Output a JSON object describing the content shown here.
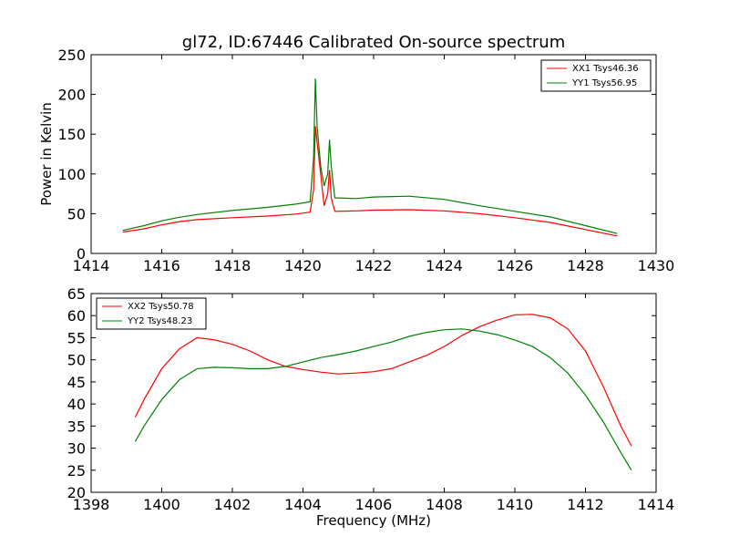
{
  "figure": {
    "title": "gl72, ID:67446 Calibrated On-source spectrum",
    "xlabel": "Frequency (MHz)"
  },
  "chart_data": [
    {
      "type": "line",
      "ylabel": "Power in Kelvin",
      "xlim": [
        1414,
        1430
      ],
      "ylim": [
        0,
        250
      ],
      "xticks": [
        "1414",
        "1416",
        "1418",
        "1420",
        "1422",
        "1424",
        "1426",
        "1428",
        "1430"
      ],
      "yticks": [
        "0",
        "50",
        "100",
        "150",
        "200",
        "250"
      ],
      "legend_position": "top-right",
      "series": [
        {
          "name": "XX1 Tsys46.36",
          "color": "#ff0000",
          "points": [
            [
              1414.9,
              27
            ],
            [
              1415.5,
              31
            ],
            [
              1416,
              36
            ],
            [
              1416.5,
              40
            ],
            [
              1417,
              42.5
            ],
            [
              1418,
              45
            ],
            [
              1419,
              47
            ],
            [
              1419.8,
              49.5
            ],
            [
              1420.2,
              52
            ],
            [
              1420.3,
              80
            ],
            [
              1420.35,
              160
            ],
            [
              1420.4,
              140
            ],
            [
              1420.5,
              100
            ],
            [
              1420.6,
              60
            ],
            [
              1420.7,
              75
            ],
            [
              1420.75,
              105
            ],
            [
              1420.8,
              70
            ],
            [
              1420.9,
              53
            ],
            [
              1421.5,
              53.5
            ],
            [
              1422,
              54.5
            ],
            [
              1423,
              55
            ],
            [
              1424,
              53.5
            ],
            [
              1425,
              50
            ],
            [
              1426,
              45
            ],
            [
              1427,
              39
            ],
            [
              1428,
              30
            ],
            [
              1428.9,
              22
            ]
          ]
        },
        {
          "name": "YY1 Tsys56.95",
          "color": "#008000",
          "points": [
            [
              1414.9,
              29
            ],
            [
              1415.5,
              35
            ],
            [
              1416,
              41
            ],
            [
              1416.5,
              45.5
            ],
            [
              1417,
              49
            ],
            [
              1418,
              54
            ],
            [
              1419,
              58
            ],
            [
              1419.8,
              62
            ],
            [
              1420.2,
              65
            ],
            [
              1420.3,
              120
            ],
            [
              1420.35,
              220
            ],
            [
              1420.4,
              160
            ],
            [
              1420.5,
              110
            ],
            [
              1420.6,
              85
            ],
            [
              1420.7,
              100
            ],
            [
              1420.75,
              143
            ],
            [
              1420.8,
              110
            ],
            [
              1420.9,
              70
            ],
            [
              1421.5,
              69
            ],
            [
              1422,
              71
            ],
            [
              1423,
              72
            ],
            [
              1424,
              68
            ],
            [
              1425,
              60
            ],
            [
              1426,
              53
            ],
            [
              1427,
              46
            ],
            [
              1428,
              35
            ],
            [
              1428.9,
              25
            ]
          ]
        }
      ]
    },
    {
      "type": "line",
      "ylabel": "",
      "xlim": [
        1398,
        1414
      ],
      "ylim": [
        20,
        65
      ],
      "xticks": [
        "1398",
        "1400",
        "1402",
        "1404",
        "1406",
        "1408",
        "1410",
        "1412",
        "1414"
      ],
      "yticks": [
        "20",
        "25",
        "30",
        "35",
        "40",
        "45",
        "50",
        "55",
        "60",
        "65"
      ],
      "legend_position": "top-left",
      "series": [
        {
          "name": "XX2 Tsys50.78",
          "color": "#ff0000",
          "points": [
            [
              1399.25,
              37
            ],
            [
              1399.5,
              41
            ],
            [
              1400,
              48
            ],
            [
              1400.5,
              52.5
            ],
            [
              1401,
              55
            ],
            [
              1401.5,
              54.5
            ],
            [
              1402,
              53.5
            ],
            [
              1402.5,
              52
            ],
            [
              1403,
              50
            ],
            [
              1403.5,
              48.5
            ],
            [
              1404,
              47.8
            ],
            [
              1404.5,
              47.2
            ],
            [
              1405,
              46.8
            ],
            [
              1405.5,
              47
            ],
            [
              1406,
              47.3
            ],
            [
              1406.5,
              48
            ],
            [
              1407,
              49.5
            ],
            [
              1407.5,
              51
            ],
            [
              1408,
              53
            ],
            [
              1408.5,
              55.5
            ],
            [
              1409,
              57.5
            ],
            [
              1409.5,
              59
            ],
            [
              1410,
              60.2
            ],
            [
              1410.5,
              60.3
            ],
            [
              1411,
              59.5
            ],
            [
              1411.5,
              57
            ],
            [
              1412,
              52
            ],
            [
              1412.5,
              44
            ],
            [
              1413,
              35
            ],
            [
              1413.3,
              30.5
            ]
          ]
        },
        {
          "name": "YY2 Tsys48.23",
          "color": "#008000",
          "points": [
            [
              1399.25,
              31.5
            ],
            [
              1399.5,
              35
            ],
            [
              1400,
              41
            ],
            [
              1400.5,
              45.5
            ],
            [
              1401,
              48
            ],
            [
              1401.5,
              48.3
            ],
            [
              1402,
              48.2
            ],
            [
              1402.5,
              48
            ],
            [
              1403,
              48
            ],
            [
              1403.5,
              48.5
            ],
            [
              1404,
              49.5
            ],
            [
              1404.5,
              50.5
            ],
            [
              1405,
              51.2
            ],
            [
              1405.5,
              52
            ],
            [
              1406,
              53
            ],
            [
              1406.5,
              54
            ],
            [
              1407,
              55.3
            ],
            [
              1407.5,
              56.2
            ],
            [
              1408,
              56.8
            ],
            [
              1408.5,
              57
            ],
            [
              1409,
              56.5
            ],
            [
              1409.5,
              55.7
            ],
            [
              1410,
              54.5
            ],
            [
              1410.5,
              53
            ],
            [
              1411,
              50.5
            ],
            [
              1411.5,
              47
            ],
            [
              1412,
              42
            ],
            [
              1412.5,
              36
            ],
            [
              1413,
              29
            ],
            [
              1413.3,
              25
            ]
          ]
        }
      ]
    }
  ]
}
